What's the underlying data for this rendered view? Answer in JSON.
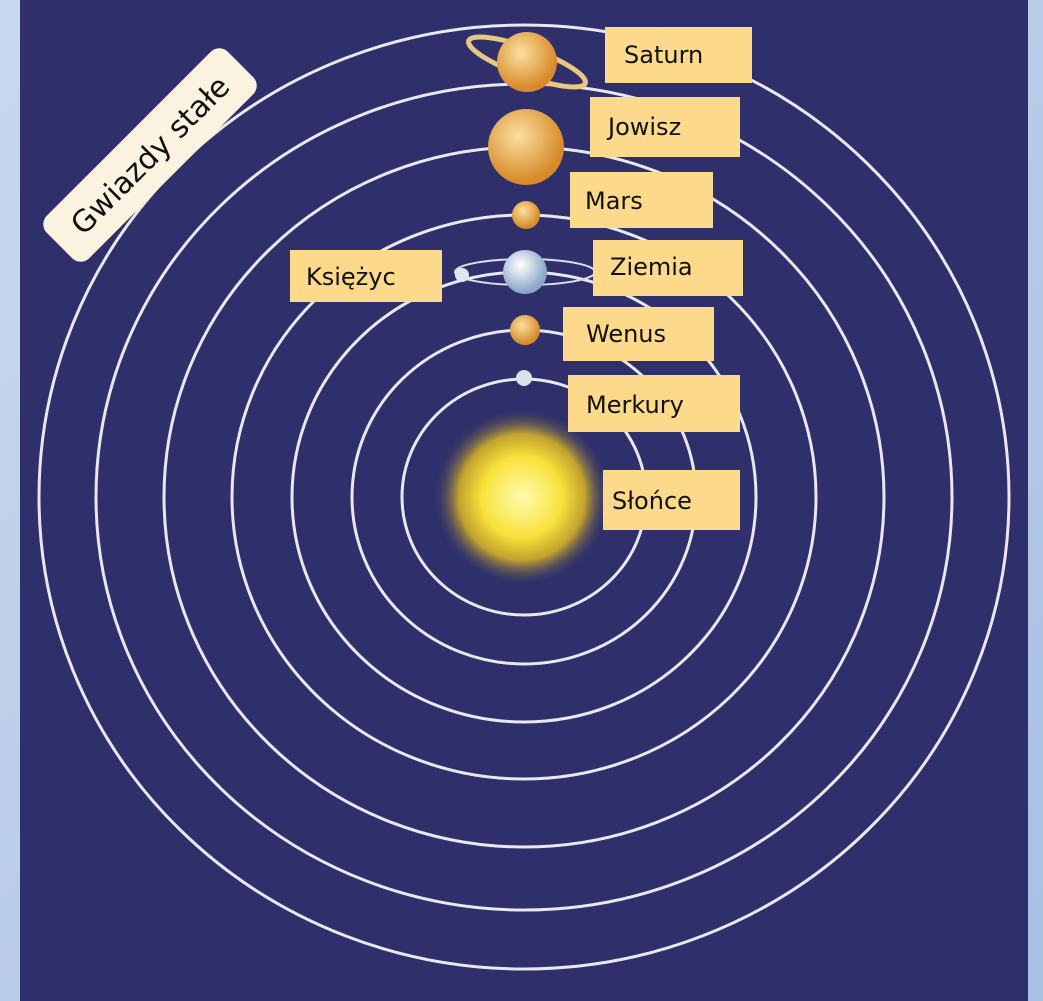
{
  "fixed_stars": "Gwiazdy stałe",
  "labels": {
    "saturn": "Saturn",
    "jupiter": "Jowisz",
    "mars": "Mars",
    "earth": "Ziemia",
    "moon": "Księżyc",
    "venus": "Wenus",
    "mercury": "Merkury",
    "sun": "Słońce"
  }
}
